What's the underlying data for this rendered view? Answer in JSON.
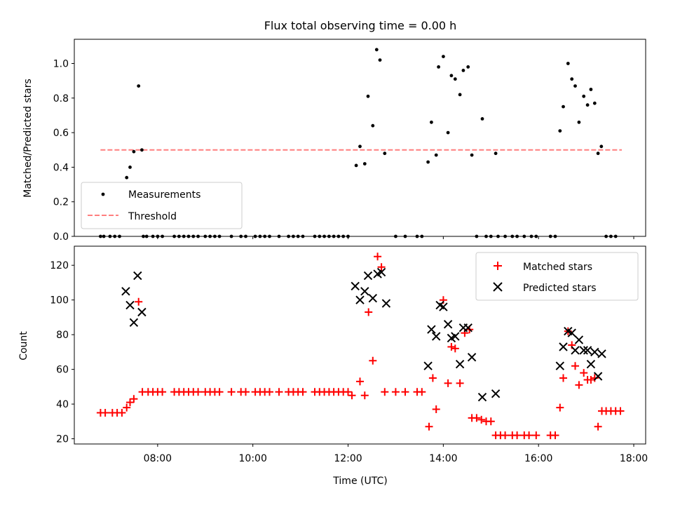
{
  "title": "Flux total observing time = 0.00 h",
  "colors": {
    "measurement": "#000000",
    "threshold": "#ff7f7f",
    "matched": "#ff0000",
    "predicted": "#000000"
  },
  "chart_data": [
    {
      "type": "scatter",
      "panel": "top",
      "title": "Flux total observing time = 0.00 h",
      "xlabel": "",
      "ylabel": "Matched/Predicted stars",
      "xlim": [
        6.25,
        18.25
      ],
      "ylim": [
        0,
        1.14
      ],
      "yticks": [
        0.0,
        0.2,
        0.4,
        0.6,
        0.8,
        1.0
      ],
      "ytick_labels": [
        "0.0",
        "0.2",
        "0.4",
        "0.6",
        "0.8",
        "1.0"
      ],
      "legend": {
        "position": "lower-left",
        "entries": [
          "Measurements",
          "Threshold"
        ]
      },
      "series": [
        {
          "name": "Measurements",
          "marker": "dot",
          "x": [
            6.8,
            6.87,
            7.0,
            7.1,
            7.2,
            7.35,
            7.42,
            7.5,
            7.6,
            7.67,
            7.7,
            7.77,
            7.9,
            8.0,
            8.1,
            8.35,
            8.45,
            8.55,
            8.65,
            8.75,
            8.85,
            9.0,
            9.1,
            9.2,
            9.3,
            9.55,
            9.75,
            9.85,
            10.05,
            10.15,
            10.25,
            10.35,
            10.55,
            10.75,
            10.85,
            10.95,
            11.05,
            11.3,
            11.4,
            11.5,
            11.6,
            11.7,
            11.8,
            11.9,
            12.0,
            12.17,
            12.25,
            12.35,
            12.42,
            12.52,
            12.6,
            12.67,
            12.77,
            13.0,
            13.2,
            13.45,
            13.55,
            13.68,
            13.75,
            13.85,
            13.9,
            14.0,
            14.1,
            14.17,
            14.25,
            14.35,
            14.42,
            14.52,
            14.6,
            14.7,
            14.82,
            14.9,
            15.0,
            15.1,
            15.15,
            15.3,
            15.45,
            15.55,
            15.7,
            15.85,
            15.95,
            16.25,
            16.35,
            16.45,
            16.52,
            16.62,
            16.7,
            16.77,
            16.85,
            16.95,
            17.03,
            17.1,
            17.18,
            17.25,
            17.32,
            17.42,
            17.52,
            17.62
          ],
          "y": [
            0,
            0,
            0,
            0,
            0,
            0.34,
            0.4,
            0.49,
            0.87,
            0.5,
            0,
            0,
            0,
            0,
            0,
            0,
            0,
            0,
            0,
            0,
            0,
            0,
            0,
            0,
            0,
            0,
            0,
            0,
            0,
            0,
            0,
            0,
            0,
            0,
            0,
            0,
            0,
            0,
            0,
            0,
            0,
            0,
            0,
            0,
            0,
            0.41,
            0.52,
            0.42,
            0.81,
            0.64,
            1.08,
            1.02,
            0.48,
            0,
            0,
            0,
            0,
            0.43,
            0.66,
            0.47,
            0.98,
            1.04,
            0.6,
            0.93,
            0.91,
            0.82,
            0.96,
            0.98,
            0.47,
            0,
            0.68,
            0,
            0,
            0.48,
            0,
            0,
            0,
            0,
            0,
            0,
            0,
            0,
            0,
            0.61,
            0.75,
            1.0,
            0.91,
            0.87,
            0.66,
            0.81,
            0.76,
            0.85,
            0.77,
            0.48,
            0.52,
            0,
            0,
            0
          ]
        },
        {
          "name": "Threshold",
          "marker": "dashed-line",
          "x": [
            6.8,
            17.75
          ],
          "y": [
            0.5,
            0.5
          ]
        }
      ]
    },
    {
      "type": "scatter",
      "panel": "bottom",
      "xlabel": "Time (UTC)",
      "ylabel": "Count",
      "xlim": [
        6.25,
        18.25
      ],
      "ylim": [
        17,
        131
      ],
      "xticks": [
        8,
        10,
        12,
        14,
        16,
        18
      ],
      "xtick_labels": [
        "08:00",
        "10:00",
        "12:00",
        "14:00",
        "16:00",
        "18:00"
      ],
      "yticks": [
        20,
        40,
        60,
        80,
        100,
        120
      ],
      "ytick_labels": [
        "20",
        "40",
        "60",
        "80",
        "100",
        "120"
      ],
      "legend": {
        "position": "top-right",
        "entries": [
          "Matched stars",
          "Predicted stars"
        ]
      },
      "series": [
        {
          "name": "Matched stars",
          "marker": "plus",
          "x": [
            6.8,
            6.9,
            7.05,
            7.15,
            7.25,
            7.35,
            7.42,
            7.5,
            7.6,
            7.68,
            7.8,
            7.9,
            8.0,
            8.1,
            8.35,
            8.45,
            8.55,
            8.65,
            8.75,
            8.85,
            9.0,
            9.1,
            9.2,
            9.3,
            9.55,
            9.75,
            9.85,
            10.05,
            10.15,
            10.25,
            10.35,
            10.55,
            10.75,
            10.85,
            10.95,
            11.05,
            11.3,
            11.4,
            11.5,
            11.6,
            11.7,
            11.8,
            11.9,
            12.0,
            12.08,
            12.25,
            12.35,
            12.43,
            12.52,
            12.62,
            12.7,
            12.77,
            13.0,
            13.2,
            13.45,
            13.55,
            13.7,
            13.78,
            13.85,
            14.0,
            14.1,
            14.17,
            14.25,
            14.35,
            14.45,
            14.55,
            14.6,
            14.7,
            14.8,
            14.9,
            15.0,
            15.1,
            15.2,
            15.3,
            15.45,
            15.55,
            15.7,
            15.8,
            15.95,
            16.25,
            16.35,
            16.45,
            16.52,
            16.62,
            16.7,
            16.77,
            16.85,
            16.95,
            17.03,
            17.1,
            17.18,
            17.25,
            17.33,
            17.42,
            17.52,
            17.62,
            17.72
          ],
          "y": [
            35,
            35,
            35,
            35,
            35,
            38,
            41,
            43,
            99,
            47,
            47,
            47,
            47,
            47,
            47,
            47,
            47,
            47,
            47,
            47,
            47,
            47,
            47,
            47,
            47,
            47,
            47,
            47,
            47,
            47,
            47,
            47,
            47,
            47,
            47,
            47,
            47,
            47,
            47,
            47,
            47,
            47,
            47,
            47,
            45,
            53,
            45,
            93,
            65,
            125,
            119,
            47,
            47,
            47,
            47,
            47,
            27,
            55,
            37,
            100,
            52,
            73,
            72,
            52,
            81,
            83,
            32,
            32,
            31,
            30,
            30,
            22,
            22,
            22,
            22,
            22,
            22,
            22,
            22,
            22,
            22,
            38,
            55,
            82,
            74,
            62,
            51,
            58,
            54,
            54,
            55,
            27,
            36,
            36,
            36,
            36,
            36
          ]
        },
        {
          "name": "Predicted stars",
          "marker": "x",
          "x": [
            7.33,
            7.42,
            7.5,
            7.58,
            7.67,
            12.15,
            12.25,
            12.35,
            12.42,
            12.52,
            12.62,
            12.7,
            12.8,
            13.68,
            13.75,
            13.85,
            13.93,
            14.0,
            14.1,
            14.17,
            14.25,
            14.35,
            14.42,
            14.52,
            14.6,
            14.82,
            15.1,
            16.45,
            16.52,
            16.62,
            16.7,
            16.77,
            16.85,
            16.95,
            17.03,
            17.1,
            17.18,
            17.25,
            17.33
          ],
          "y": [
            105,
            97,
            87,
            114,
            93,
            108,
            100,
            105,
            114,
            101,
            115,
            116,
            98,
            62,
            83,
            79,
            97,
            96,
            86,
            78,
            79,
            63,
            84,
            84,
            67,
            44,
            46,
            62,
            73,
            82,
            81,
            71,
            77,
            71,
            71,
            63,
            70,
            56,
            69
          ]
        }
      ]
    }
  ]
}
